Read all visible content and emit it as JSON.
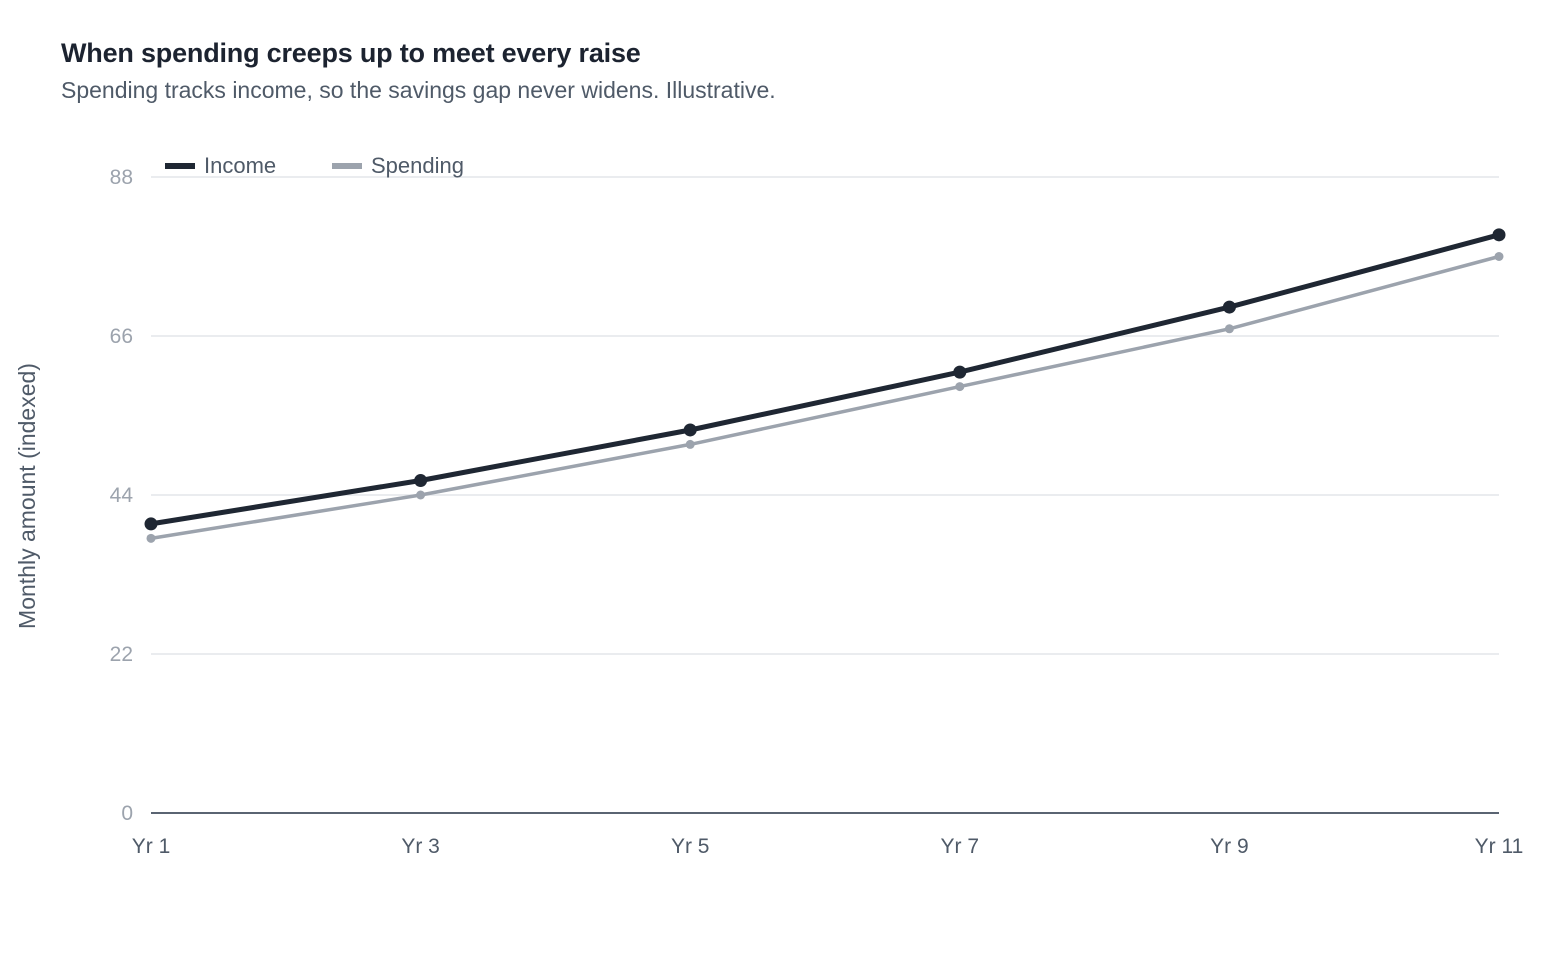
{
  "chart_data": {
    "type": "line",
    "title": "When spending creeps up to meet every raise",
    "subtitle": "Spending tracks income, so the savings gap never widens. Illustrative.",
    "xlabel": "",
    "ylabel": "Monthly amount (indexed)",
    "categories": [
      "Yr 1",
      "Yr 3",
      "Yr 5",
      "Yr 7",
      "Yr 9",
      "Yr 11"
    ],
    "ylim": [
      0,
      88
    ],
    "yticks": [
      "0",
      "22",
      "44",
      "66",
      "88"
    ],
    "grid": true,
    "legend_position": "top-left",
    "series": [
      {
        "name": "Income",
        "color": "#1f2733",
        "values": [
          40,
          46,
          53,
          61,
          70,
          80
        ]
      },
      {
        "name": "Spending",
        "color": "#9ca3ad",
        "values": [
          38,
          44,
          51,
          59,
          67,
          77
        ]
      }
    ]
  }
}
